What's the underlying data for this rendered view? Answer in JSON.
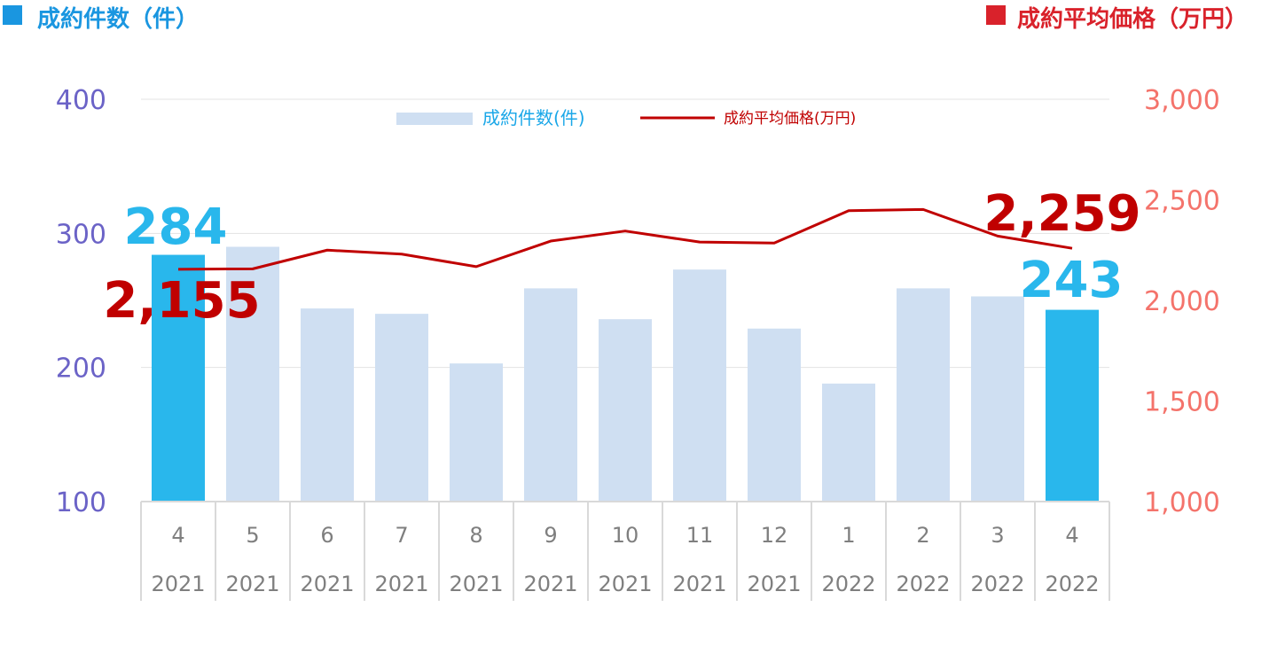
{
  "header": {
    "left_title": "成約件数（件）",
    "right_title": "成約平均価格（万円）",
    "left_color": "#1a96e0",
    "right_color": "#d9222b"
  },
  "chart_data": {
    "type": "bar+line",
    "categories": [
      {
        "month": "4",
        "year": "2021"
      },
      {
        "month": "5",
        "year": "2021"
      },
      {
        "month": "6",
        "year": "2021"
      },
      {
        "month": "7",
        "year": "2021"
      },
      {
        "month": "8",
        "year": "2021"
      },
      {
        "month": "9",
        "year": "2021"
      },
      {
        "month": "10",
        "year": "2021"
      },
      {
        "month": "11",
        "year": "2021"
      },
      {
        "month": "12",
        "year": "2021"
      },
      {
        "month": "1",
        "year": "2022"
      },
      {
        "month": "2",
        "year": "2022"
      },
      {
        "month": "3",
        "year": "2022"
      },
      {
        "month": "4",
        "year": "2022"
      }
    ],
    "series": [
      {
        "name": "成約件数(件)",
        "type": "bar",
        "axis": "left",
        "values": [
          284,
          290,
          244,
          240,
          203,
          259,
          236,
          273,
          229,
          188,
          259,
          253,
          243
        ],
        "color": "#cfdff2",
        "highlight_color": "#29b7ec",
        "highlight_indices": [
          0,
          12
        ]
      },
      {
        "name": "成約平均価格(万円)",
        "type": "line",
        "axis": "right",
        "values": [
          2155,
          2157,
          2250,
          2230,
          2168,
          2295,
          2345,
          2290,
          2285,
          2446,
          2452,
          2320,
          2259
        ],
        "color": "#c00000"
      }
    ],
    "left_axis": {
      "ticks": [
        "400",
        "300",
        "200",
        "100"
      ],
      "ylim": [
        100,
        400
      ]
    },
    "right_axis": {
      "ticks": [
        "3,000",
        "2,500",
        "2,000",
        "1,500",
        "1,000"
      ],
      "ylim": [
        1000,
        3000
      ]
    },
    "annotations": {
      "bar_first": "284",
      "bar_last": "243",
      "line_first": "2,155",
      "line_last": "2,259",
      "bar_label_color": "#29b7ec",
      "line_label_color": "#c00000"
    },
    "legend": {
      "placement": "top-center",
      "bar_label": "成約件数(件)",
      "line_label": "成約平均価格(万円)"
    },
    "grid": true
  }
}
